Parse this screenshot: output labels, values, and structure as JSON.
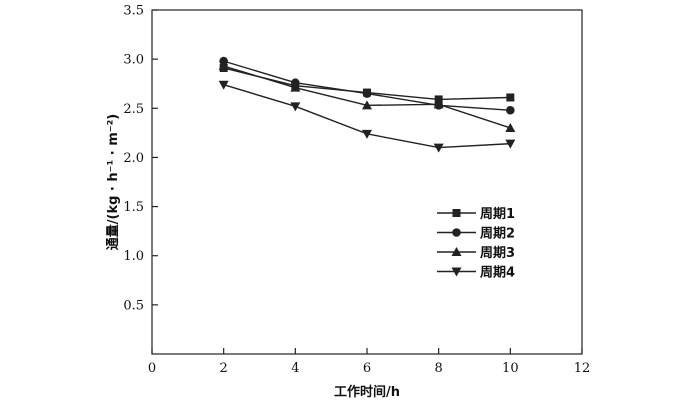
{
  "chart_data": {
    "type": "line",
    "title": "",
    "xlabel": "工作时间/h",
    "ylabel": "通量/(kg · h⁻¹ · m⁻²)",
    "xlim": [
      0,
      12
    ],
    "ylim": [
      0,
      3.5
    ],
    "xticks": [
      0,
      2,
      4,
      6,
      8,
      10,
      12
    ],
    "xtick_labels": [
      "0",
      "2",
      "4",
      "6",
      "8",
      "10",
      "12"
    ],
    "yticks": [
      0.5,
      1.0,
      1.5,
      2.0,
      2.5,
      3.0,
      3.5
    ],
    "ytick_labels": [
      "0.5",
      "1.0",
      "1.5",
      "2.0",
      "2.5",
      "3.0",
      "3.5"
    ],
    "grid": false,
    "legend_position": "right-middle",
    "x": [
      2,
      4,
      6,
      8,
      10
    ],
    "series": [
      {
        "name": "周期1",
        "marker": "square",
        "values": [
          2.91,
          2.73,
          2.66,
          2.59,
          2.61
        ]
      },
      {
        "name": "周期2",
        "marker": "circle",
        "values": [
          2.98,
          2.76,
          2.65,
          2.53,
          2.48
        ]
      },
      {
        "name": "周期3",
        "marker": "triangle-up",
        "values": [
          2.93,
          2.71,
          2.53,
          2.54,
          2.3
        ]
      },
      {
        "name": "周期4",
        "marker": "triangle-down",
        "values": [
          2.74,
          2.52,
          2.24,
          2.1,
          2.14
        ]
      }
    ]
  },
  "colors": {
    "line": "#222222",
    "background": "#ffffff"
  }
}
